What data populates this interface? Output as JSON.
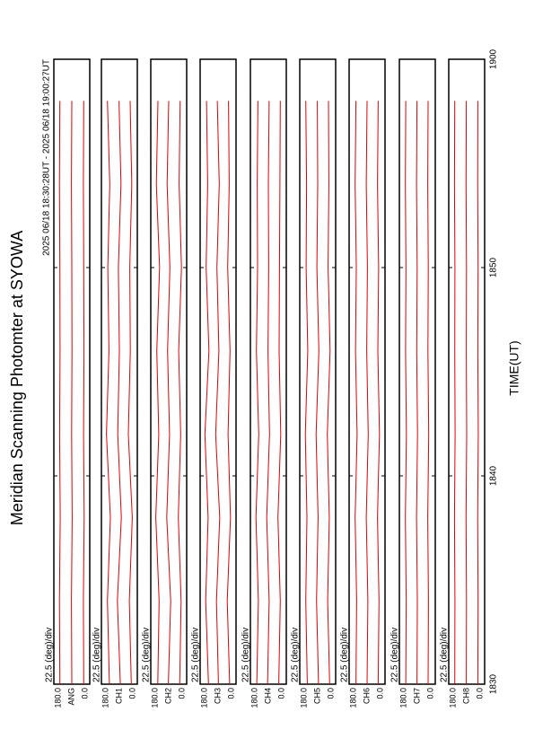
{
  "chart_data": {
    "type": "line",
    "title": "Meridian Scanning Photomter at SYOWA",
    "subtitle": "2025 06/18 18:30:28UT - 2025 06/18 19:00:27UT",
    "xlabel": "TIME(UT)",
    "xlim": [
      30,
      60
    ],
    "xticks": [
      {
        "value": 30,
        "label": "1830"
      },
      {
        "value": 40,
        "label": "1840"
      },
      {
        "value": 50,
        "label": "1850"
      },
      {
        "value": 60,
        "label": "1900"
      }
    ],
    "x": [
      30,
      34,
      38,
      42,
      46,
      50,
      54,
      58
    ],
    "color": "#e00000",
    "panels": [
      {
        "label": "ANG",
        "scale_label": "22.5 (deg)/div",
        "ylim": [
          0,
          180
        ],
        "yticks": [
          {
            "value": 180,
            "label": "180.0"
          },
          {
            "value": 0,
            "label": "0.0"
          }
        ],
        "series": [
          {
            "values": [
              150,
              152,
              148,
              151,
              149,
              150,
              152,
              150
            ]
          },
          {
            "values": [
              90,
              92,
              88,
              91,
              89,
              90,
              92,
              90
            ]
          },
          {
            "values": [
              30,
              32,
              28,
              31,
              29,
              30,
              32,
              30
            ]
          }
        ]
      },
      {
        "label": "CH1",
        "scale_label": "22.5 (deg)/div",
        "ylim": [
          0,
          180
        ],
        "yticks": [
          {
            "value": 180,
            "label": "180.0"
          },
          {
            "value": 0,
            "label": "0.0"
          }
        ],
        "series": [
          {
            "values": [
              140,
              150,
              135,
              155,
              142,
              148,
              138,
              150
            ]
          },
          {
            "values": [
              85,
              100,
              80,
              98,
              90,
              95,
              82,
              92
            ]
          },
          {
            "values": [
              30,
              40,
              25,
              45,
              35,
              38,
              28,
              36
            ]
          }
        ]
      },
      {
        "label": "CH2",
        "scale_label": "22.5 (deg)/div",
        "ylim": [
          0,
          180
        ],
        "yticks": [
          {
            "value": 180,
            "label": "180.0"
          },
          {
            "value": 0,
            "label": "0.0"
          }
        ],
        "series": [
          {
            "values": [
              145,
              138,
              155,
              140,
              150,
              136,
              152,
              144
            ]
          },
          {
            "values": [
              92,
              80,
              100,
              86,
              96,
              84,
              98,
              90
            ]
          },
          {
            "values": [
              35,
              28,
              42,
              30,
              40,
              26,
              38,
              33
            ]
          }
        ]
      },
      {
        "label": "CH3",
        "scale_label": "22.5 (deg)/div",
        "ylim": [
          0,
          180
        ],
        "yticks": [
          {
            "value": 180,
            "label": "180.0"
          },
          {
            "value": 0,
            "label": "0.0"
          }
        ],
        "series": [
          {
            "values": [
              138,
              152,
              140,
              156,
              136,
              150,
              142,
              148
            ]
          },
          {
            "values": [
              88,
              98,
              82,
              102,
              86,
              96,
              84,
              94
            ]
          },
          {
            "values": [
              32,
              44,
              28,
              40,
              30,
              42,
              34,
              38
            ]
          }
        ]
      },
      {
        "label": "CH4",
        "scale_label": "22.5 (deg)/div",
        "ylim": [
          0,
          180
        ],
        "yticks": [
          {
            "value": 180,
            "label": "180.0"
          },
          {
            "value": 0,
            "label": "0.0"
          }
        ],
        "series": [
          {
            "values": [
              148,
              140,
              152,
              138,
              150,
              144,
              146,
              142
            ]
          },
          {
            "values": [
              94,
              86,
              98,
              84,
              92,
              88,
              90,
              86
            ]
          },
          {
            "values": [
              38,
              30,
              42,
              28,
              36,
              34,
              32,
              30
            ]
          }
        ]
      },
      {
        "label": "CH5",
        "scale_label": "22.5 (deg)/div",
        "ylim": [
          0,
          180
        ],
        "yticks": [
          {
            "value": 180,
            "label": "180.0"
          },
          {
            "value": 0,
            "label": "0.0"
          }
        ],
        "series": [
          {
            "values": [
              142,
              150,
              144,
              152,
              140,
              148,
              146,
              150
            ]
          },
          {
            "values": [
              86,
              96,
              88,
              98,
              84,
              94,
              90,
              92
            ]
          },
          {
            "values": [
              30,
              40,
              32,
              42,
              28,
              38,
              34,
              36
            ]
          }
        ]
      },
      {
        "label": "CH6",
        "scale_label": "22.5 (deg)/div",
        "ylim": [
          0,
          180
        ],
        "yticks": [
          {
            "value": 180,
            "label": "180.0"
          },
          {
            "value": 0,
            "label": "0.0"
          }
        ],
        "series": [
          {
            "values": [
              146,
              142,
              150,
              140,
              148,
              144,
              150,
              146
            ]
          },
          {
            "values": [
              90,
              86,
              94,
              84,
              92,
              88,
              94,
              90
            ]
          },
          {
            "values": [
              34,
              30,
              38,
              28,
              36,
              32,
              38,
              34
            ]
          }
        ]
      },
      {
        "label": "CH7",
        "scale_label": "22.5 (deg)/div",
        "ylim": [
          0,
          180
        ],
        "yticks": [
          {
            "value": 180,
            "label": "180.0"
          },
          {
            "value": 0,
            "label": "0.0"
          }
        ],
        "series": [
          {
            "values": [
              148,
              146,
              150,
              145,
              149,
              147,
              150,
              148
            ]
          },
          {
            "values": [
              92,
              90,
              94,
              89,
              93,
              91,
              94,
              92
            ]
          },
          {
            "values": [
              36,
              34,
              38,
              33,
              37,
              35,
              38,
              36
            ]
          }
        ]
      },
      {
        "label": "CH8",
        "scale_label": "22.5 (deg)/div",
        "ylim": [
          0,
          180
        ],
        "yticks": [
          {
            "value": 180,
            "label": "180.0"
          },
          {
            "value": 0,
            "label": "0.0"
          }
        ],
        "series": [
          {
            "values": [
              150,
              149,
              151,
              148,
              150,
              149,
              151,
              150
            ]
          },
          {
            "values": [
              92,
              91,
              93,
              90,
              92,
              91,
              93,
              92
            ]
          },
          {
            "values": [
              34,
              33,
              35,
              32,
              34,
              33,
              35,
              34
            ]
          }
        ]
      }
    ]
  }
}
